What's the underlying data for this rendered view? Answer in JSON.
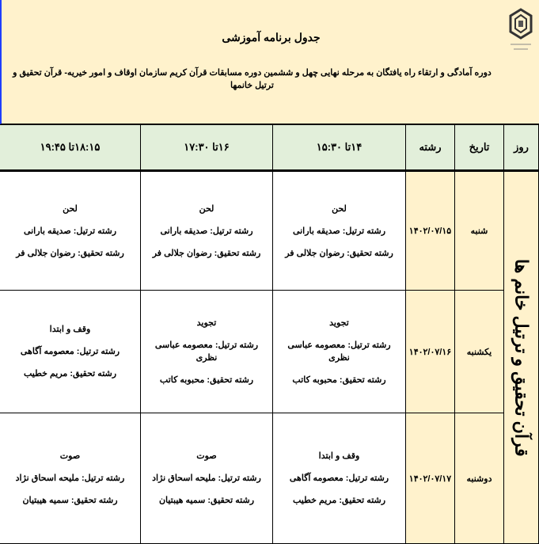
{
  "header": {
    "title": "جدول برنامه آموزشی",
    "subtitle": "دوره آمادگی و ارتقاء راه یافتگان به مرحله نهایی چهل و ششمین دوره مسابقات قرآن کریم سازمان اوقاف و امور خیریه- قرآن تحقیق و ترتیل خانمها",
    "logo_icon": "organization-emblem"
  },
  "columns": [
    "روز",
    "تاریخ",
    "رشته",
    "۱۴تا ۱۵:۳۰",
    "۱۶تا ۱۷:۳۰",
    "۱۸:۱۵تا ۱۹:۴۵"
  ],
  "field_label": "قرآن تحقیق و ترتیل خانم ها",
  "rows": [
    {
      "day": "شنبه",
      "date": "۱۴۰۲/۰۷/۱۵",
      "slots": [
        {
          "topic": "لحن",
          "tartil": "رشته ترتیل: صدیقه بارانی",
          "tahqiq": "رشته تحقیق: رضوان جلالی فر"
        },
        {
          "topic": "لحن",
          "tartil": "رشته ترتیل: صدیقه بارانی",
          "tahqiq": "رشته تحقیق: رضوان جلالی فر"
        },
        {
          "topic": "لحن",
          "tartil": "رشته ترتیل: صدیقه بارانی",
          "tahqiq": "رشته تحقیق: رضوان جلالی فر"
        }
      ]
    },
    {
      "day": "یکشنبه",
      "date": "۱۴۰۲/۰۷/۱۶",
      "slots": [
        {
          "topic": "تجوید",
          "tartil": "رشته ترتیل: معصومه عباسی نظری",
          "tahqiq": "رشته تحقیق: محبوبه کاتب"
        },
        {
          "topic": "تجوید",
          "tartil": "رشته ترتیل: معصومه عباسی نظری",
          "tahqiq": "رشته تحقیق: محبوبه کاتب"
        },
        {
          "topic": "وقف و ابتدا",
          "tartil": "رشته ترتیل: معصومه آگاهی",
          "tahqiq": "رشته تحقیق: مریم خطیب"
        }
      ]
    },
    {
      "day": "دوشنبه",
      "date": "۱۴۰۲/۰۷/۱۷",
      "slots": [
        {
          "topic": "وقف و ابتدا",
          "tartil": "رشته ترتیل: معصومه آگاهی",
          "tahqiq": "رشته تحقیق: مریم خطیب"
        },
        {
          "topic": "صوت",
          "tartil": "رشته ترتیل: ملیحه اسحاق نژاد",
          "tahqiq": "رشته تحقیق: سمیه هیبتیان"
        },
        {
          "topic": "صوت",
          "tartil": "رشته ترتیل: ملیحه اسحاق نژاد",
          "tahqiq": "رشته تحقیق: سمیه هیبتیان"
        }
      ]
    }
  ]
}
